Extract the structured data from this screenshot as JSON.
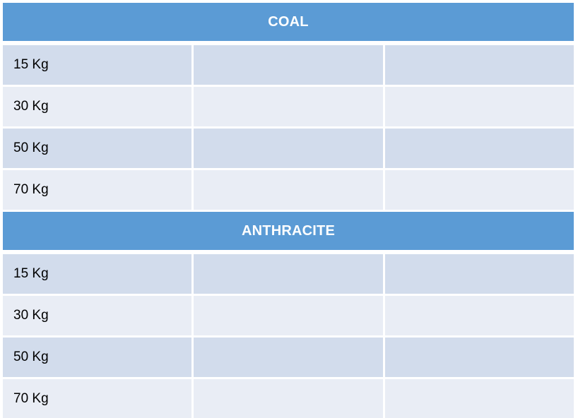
{
  "table": {
    "sections": [
      {
        "header": "COAL",
        "rows": [
          {
            "label": "15 Kg",
            "values": [
              "",
              ""
            ]
          },
          {
            "label": "30 Kg",
            "values": [
              "",
              ""
            ]
          },
          {
            "label": "50 Kg",
            "values": [
              "",
              ""
            ]
          },
          {
            "label": "70 Kg",
            "values": [
              "",
              ""
            ]
          }
        ]
      },
      {
        "header": "ANTHRACITE",
        "rows": [
          {
            "label": "15 Kg",
            "values": [
              "",
              ""
            ]
          },
          {
            "label": "30 Kg",
            "values": [
              "",
              ""
            ]
          },
          {
            "label": "50 Kg",
            "values": [
              "",
              ""
            ]
          },
          {
            "label": "70 Kg",
            "values": [
              "",
              ""
            ]
          }
        ]
      }
    ]
  },
  "colors": {
    "header_bg": "#5B9BD5",
    "header_text": "#FFFFFF",
    "band_dark": "#D2DCEC",
    "band_light": "#E9EDF5",
    "cell_text": "#000000",
    "gutter": "#FFFFFF"
  }
}
